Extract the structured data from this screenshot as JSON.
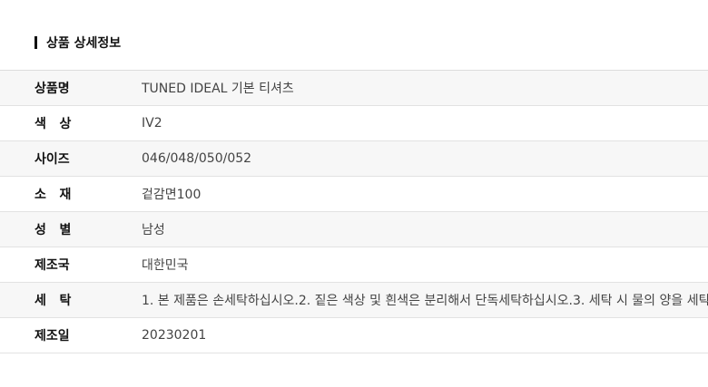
{
  "section_title": "상품 상세정보",
  "rows": [
    {
      "label": "상품명",
      "value": "TUNED IDEAL 기본 티셔츠"
    },
    {
      "label": "색   상",
      "value": "IV2"
    },
    {
      "label": "사이즈",
      "value": "046/048/050/052"
    },
    {
      "label": "소   재",
      "value": "겉감면100"
    },
    {
      "label": "성   별",
      "value": "남성"
    },
    {
      "label": "제조국",
      "value": "대한민국"
    },
    {
      "label": "세   탁",
      "value": "1. 본 제품은 손세탁하십시오.2. 짙은 색상 및 흰색은 분리해서 단독세탁하십시오.3. 세탁 시 물의 양을 세탁"
    },
    {
      "label": "제조일",
      "value": "20230201"
    }
  ]
}
